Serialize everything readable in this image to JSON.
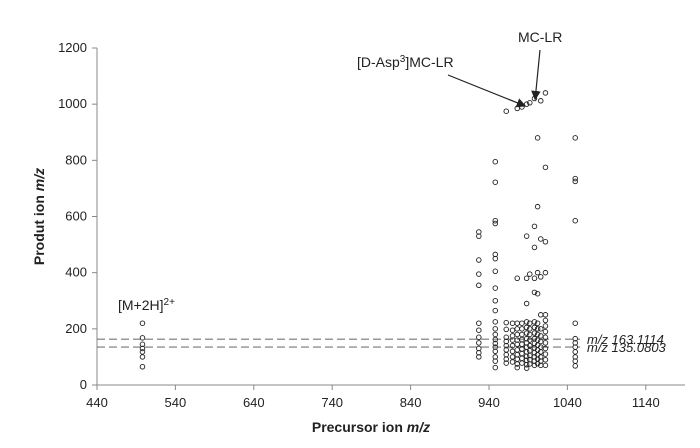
{
  "chart_data": {
    "type": "scatter",
    "xlabel": "Precursor ion m/z",
    "ylabel": "Produt ion m/z",
    "xlim": [
      440,
      1190
    ],
    "ylim": [
      0,
      1200
    ],
    "xticks": [
      440,
      540,
      640,
      740,
      840,
      940,
      1040,
      1140
    ],
    "yticks": [
      0,
      200,
      400,
      600,
      800,
      1000,
      1200
    ],
    "grid": false,
    "marker": "open-circle",
    "reference_lines": [
      {
        "y": 163.1114,
        "label": "m/z 163.1114",
        "style": "dashed"
      },
      {
        "y": 135.0803,
        "label": "m/z 135.0803",
        "style": "dashed"
      }
    ],
    "annotations": [
      {
        "text": "[D-Asp3]MC-LR",
        "points_to": [
          981,
          983
        ]
      },
      {
        "text": "MC-LR",
        "points_to": [
          995,
          1003
        ]
      },
      {
        "text": "[M+2H]2+",
        "near": [
          498,
          220
        ]
      }
    ],
    "points": [
      [
        498,
        220
      ],
      [
        498,
        168
      ],
      [
        498,
        145
      ],
      [
        498,
        130
      ],
      [
        498,
        118
      ],
      [
        498,
        100
      ],
      [
        498,
        65
      ],
      [
        927,
        545
      ],
      [
        927,
        530
      ],
      [
        927,
        445
      ],
      [
        927,
        395
      ],
      [
        927,
        355
      ],
      [
        927,
        220
      ],
      [
        927,
        195
      ],
      [
        927,
        170
      ],
      [
        927,
        150
      ],
      [
        927,
        130
      ],
      [
        927,
        115
      ],
      [
        927,
        100
      ],
      [
        948,
        795
      ],
      [
        948,
        722
      ],
      [
        948,
        585
      ],
      [
        948,
        575
      ],
      [
        948,
        465
      ],
      [
        948,
        450
      ],
      [
        948,
        405
      ],
      [
        948,
        345
      ],
      [
        948,
        300
      ],
      [
        948,
        265
      ],
      [
        948,
        225
      ],
      [
        948,
        200
      ],
      [
        948,
        180
      ],
      [
        948,
        162
      ],
      [
        948,
        148
      ],
      [
        948,
        135
      ],
      [
        948,
        120
      ],
      [
        948,
        100
      ],
      [
        948,
        85
      ],
      [
        948,
        62
      ],
      [
        962,
        975
      ],
      [
        962,
        222
      ],
      [
        962,
        198
      ],
      [
        962,
        170
      ],
      [
        962,
        155
      ],
      [
        962,
        140
      ],
      [
        962,
        125
      ],
      [
        962,
        108
      ],
      [
        962,
        92
      ],
      [
        962,
        78
      ],
      [
        970,
        220
      ],
      [
        970,
        195
      ],
      [
        970,
        175
      ],
      [
        970,
        160
      ],
      [
        970,
        140
      ],
      [
        970,
        120
      ],
      [
        970,
        100
      ],
      [
        970,
        82
      ],
      [
        976,
        985
      ],
      [
        976,
        380
      ],
      [
        976,
        220
      ],
      [
        976,
        200
      ],
      [
        976,
        180
      ],
      [
        976,
        160
      ],
      [
        976,
        145
      ],
      [
        976,
        125
      ],
      [
        976,
        108
      ],
      [
        976,
        92
      ],
      [
        976,
        75
      ],
      [
        976,
        62
      ],
      [
        982,
        990
      ],
      [
        982,
        220
      ],
      [
        982,
        200
      ],
      [
        982,
        180
      ],
      [
        982,
        162
      ],
      [
        982,
        145
      ],
      [
        982,
        128
      ],
      [
        982,
        112
      ],
      [
        982,
        95
      ],
      [
        982,
        78
      ],
      [
        988,
        1000
      ],
      [
        988,
        530
      ],
      [
        988,
        380
      ],
      [
        988,
        290
      ],
      [
        988,
        225
      ],
      [
        988,
        205
      ],
      [
        988,
        185
      ],
      [
        988,
        165
      ],
      [
        988,
        150
      ],
      [
        988,
        135
      ],
      [
        988,
        118
      ],
      [
        988,
        102
      ],
      [
        988,
        88
      ],
      [
        988,
        72
      ],
      [
        988,
        60
      ],
      [
        992,
        1005
      ],
      [
        992,
        395
      ],
      [
        992,
        220
      ],
      [
        992,
        200
      ],
      [
        992,
        180
      ],
      [
        992,
        160
      ],
      [
        992,
        140
      ],
      [
        992,
        122
      ],
      [
        992,
        105
      ],
      [
        992,
        90
      ],
      [
        992,
        75
      ],
      [
        998,
        1020
      ],
      [
        998,
        565
      ],
      [
        998,
        490
      ],
      [
        998,
        380
      ],
      [
        998,
        330
      ],
      [
        998,
        225
      ],
      [
        998,
        205
      ],
      [
        998,
        185
      ],
      [
        998,
        165
      ],
      [
        998,
        148
      ],
      [
        998,
        132
      ],
      [
        998,
        115
      ],
      [
        998,
        100
      ],
      [
        998,
        85
      ],
      [
        998,
        70
      ],
      [
        1002,
        880
      ],
      [
        1002,
        635
      ],
      [
        1002,
        400
      ],
      [
        1002,
        325
      ],
      [
        1002,
        220
      ],
      [
        1002,
        200
      ],
      [
        1002,
        180
      ],
      [
        1002,
        160
      ],
      [
        1002,
        142
      ],
      [
        1002,
        125
      ],
      [
        1002,
        108
      ],
      [
        1002,
        92
      ],
      [
        1002,
        76
      ],
      [
        1006,
        1012
      ],
      [
        1006,
        520
      ],
      [
        1006,
        385
      ],
      [
        1006,
        250
      ],
      [
        1006,
        200
      ],
      [
        1006,
        175
      ],
      [
        1006,
        155
      ],
      [
        1006,
        135
      ],
      [
        1006,
        118
      ],
      [
        1006,
        100
      ],
      [
        1006,
        85
      ],
      [
        1006,
        70
      ],
      [
        1012,
        1040
      ],
      [
        1012,
        775
      ],
      [
        1012,
        510
      ],
      [
        1012,
        400
      ],
      [
        1012,
        250
      ],
      [
        1012,
        230
      ],
      [
        1012,
        210
      ],
      [
        1012,
        190
      ],
      [
        1012,
        170
      ],
      [
        1012,
        150
      ],
      [
        1012,
        130
      ],
      [
        1012,
        110
      ],
      [
        1012,
        90
      ],
      [
        1012,
        70
      ],
      [
        1050,
        880
      ],
      [
        1050,
        735
      ],
      [
        1050,
        725
      ],
      [
        1050,
        585
      ],
      [
        1050,
        220
      ],
      [
        1050,
        165
      ],
      [
        1050,
        150
      ],
      [
        1050,
        135
      ],
      [
        1050,
        118
      ],
      [
        1050,
        100
      ],
      [
        1050,
        85
      ],
      [
        1050,
        68
      ]
    ]
  }
}
